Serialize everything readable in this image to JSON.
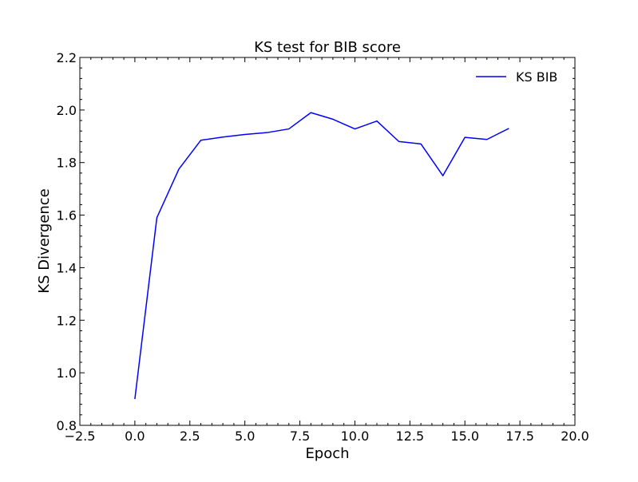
{
  "chart_data": {
    "type": "line",
    "title": "KS test for BIB score",
    "xlabel": "Epoch",
    "ylabel": "KS Divergence",
    "xlim": [
      -2.5,
      20.0
    ],
    "ylim": [
      0.8,
      2.2
    ],
    "xticks": [
      -2.5,
      0.0,
      2.5,
      5.0,
      7.5,
      10.0,
      12.5,
      15.0,
      17.5,
      20.0
    ],
    "xtick_labels": [
      "−2.5",
      "0.0",
      "2.5",
      "5.0",
      "7.5",
      "10.0",
      "12.5",
      "15.0",
      "17.5",
      "20.0"
    ],
    "yticks": [
      0.8,
      1.0,
      1.2,
      1.4,
      1.6,
      1.8,
      2.0,
      2.2
    ],
    "ytick_labels": [
      "0.8",
      "1.0",
      "1.2",
      "1.4",
      "1.6",
      "1.8",
      "2.0",
      "2.2"
    ],
    "grid": false,
    "legend_position": "top-right",
    "series": [
      {
        "name": "KS BIB",
        "color": "#0000ff",
        "x": [
          0,
          1,
          2,
          3,
          4,
          5,
          6,
          7,
          8,
          9,
          10,
          11,
          12,
          13,
          14,
          15,
          16,
          17
        ],
        "y": [
          0.9,
          1.59,
          1.775,
          1.885,
          1.897,
          1.907,
          1.914,
          1.928,
          1.99,
          1.965,
          1.928,
          1.958,
          1.88,
          1.871,
          1.75,
          1.896,
          1.888,
          1.93
        ]
      }
    ]
  }
}
